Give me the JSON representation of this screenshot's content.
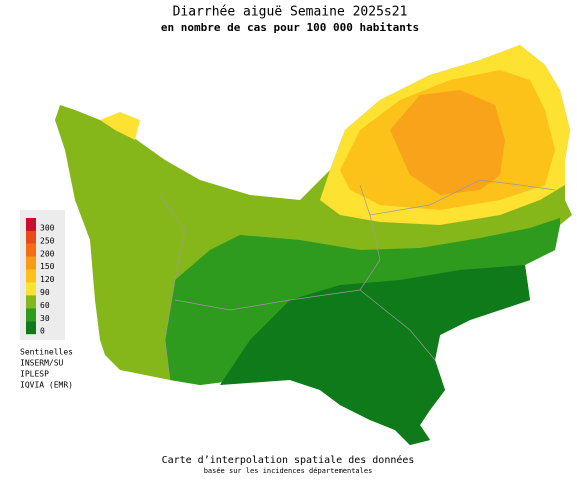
{
  "header": {
    "title": "Diarrhée aiguë Semaine 2025s21",
    "subtitle": "en nombre de cas pour 100 000 habitants"
  },
  "legend": {
    "items": [
      {
        "label": 300,
        "color": "#c8102e"
      },
      {
        "label": 250,
        "color": "#e84a1a"
      },
      {
        "label": 200,
        "color": "#f36e12"
      },
      {
        "label": 150,
        "color": "#f99b12"
      },
      {
        "label": 120,
        "color": "#fcc21a"
      },
      {
        "label": 90,
        "color": "#fde232"
      },
      {
        "label": 60,
        "color": "#86b71a"
      },
      {
        "label": 30,
        "color": "#2e9a1e"
      },
      {
        "label": 0,
        "color": "#0f7a1a"
      }
    ]
  },
  "sources": [
    "Sentinelles",
    "INSERM/SU",
    "IPLESP",
    "IQVIA (EMR)"
  ],
  "footer": {
    "line1": "Carte d’interpolation spatiale des données",
    "line2": "basée sur les incidences départementales"
  }
}
